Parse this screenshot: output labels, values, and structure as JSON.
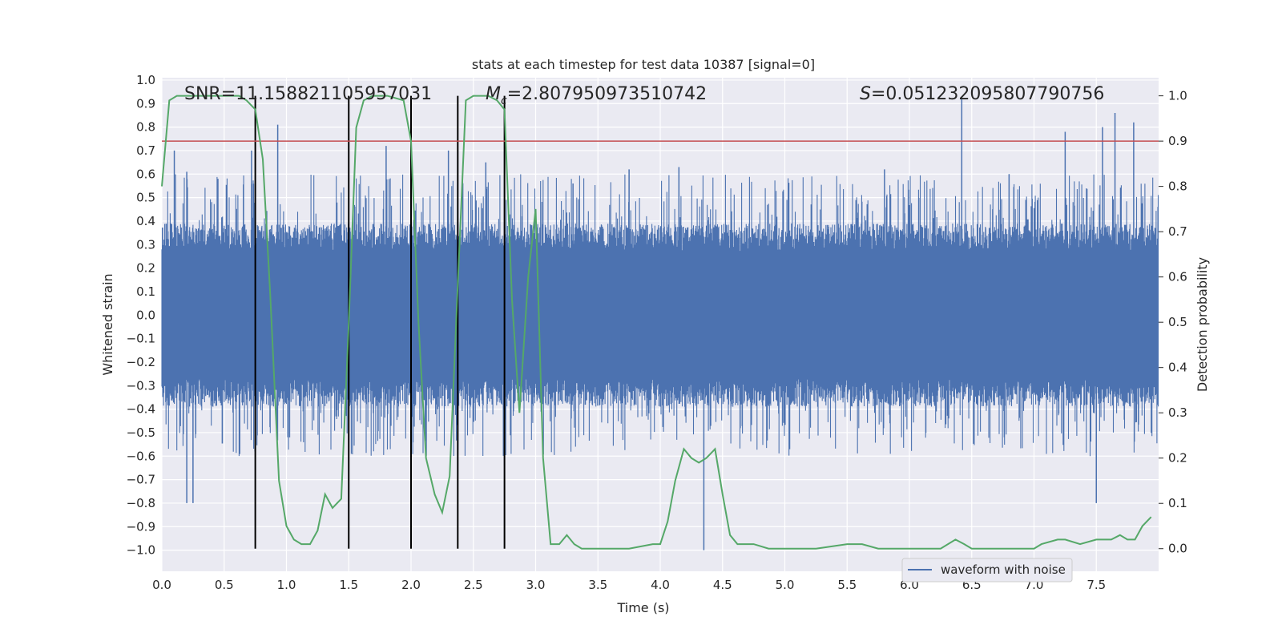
{
  "chart_data": {
    "type": "line",
    "title": "stats at each timestep for test data 10387 [signal=0]",
    "xlabel": "Time (s)",
    "ylabel_left": "Whitened strain",
    "ylabel_right": "Detection probability",
    "xlim": [
      0,
      8
    ],
    "ylim_left": [
      -1.09,
      1.01
    ],
    "ylim_right": [
      -0.05,
      1.04
    ],
    "xticks": [
      "0.0",
      "0.5",
      "1.0",
      "1.5",
      "2.0",
      "2.5",
      "3.0",
      "3.5",
      "4.0",
      "4.5",
      "5.0",
      "5.5",
      "6.0",
      "6.5",
      "7.0",
      "7.5"
    ],
    "yticks_left": [
      "1.0",
      "0.9",
      "0.8",
      "0.7",
      "0.6",
      "0.5",
      "0.4",
      "0.3",
      "0.2",
      "0.1",
      "0.0",
      "-0.1",
      "-0.2",
      "-0.3",
      "-0.4",
      "-0.5",
      "-0.6",
      "-0.7",
      "-0.8",
      "-0.9",
      "-1.0"
    ],
    "yticks_right": [
      "1.0",
      "0.9",
      "0.8",
      "0.7",
      "0.6",
      "0.5",
      "0.4",
      "0.3",
      "0.2",
      "0.1",
      "0.0"
    ],
    "annotations": {
      "snr": "SNR=11.158821105957031",
      "mc_symbol": "M",
      "mc_sub": "c",
      "mc_value": "=2.807950973510742",
      "s_symbol": "S",
      "s_value": "=0.051232095807790756"
    },
    "legend": {
      "label": "waveform with noise",
      "location": "lower right"
    },
    "threshold": 0.9,
    "vertical_lines": [
      0.75,
      1.5,
      2.0,
      2.375,
      2.75
    ],
    "series": [
      {
        "name": "waveform with noise",
        "axis": "left",
        "color": "#4c72b0",
        "spikes": [
          {
            "x": 0.1,
            "y": 0.7
          },
          {
            "x": 0.2,
            "y": -0.8
          },
          {
            "x": 0.25,
            "y": -0.8
          },
          {
            "x": 0.45,
            "y": 0.58
          },
          {
            "x": 0.72,
            "y": 0.7
          },
          {
            "x": 0.93,
            "y": 0.81
          },
          {
            "x": 1.8,
            "y": 0.72
          },
          {
            "x": 2.3,
            "y": 0.7
          },
          {
            "x": 2.75,
            "y": -0.64
          },
          {
            "x": 3.3,
            "y": 0.56
          },
          {
            "x": 3.75,
            "y": 0.62
          },
          {
            "x": 4.15,
            "y": 0.63
          },
          {
            "x": 4.35,
            "y": -1.0
          },
          {
            "x": 6.42,
            "y": 0.92
          },
          {
            "x": 6.8,
            "y": 0.6
          },
          {
            "x": 7.25,
            "y": 0.78
          },
          {
            "x": 7.55,
            "y": 0.8
          },
          {
            "x": 7.65,
            "y": 0.86
          },
          {
            "x": 7.8,
            "y": 0.82
          },
          {
            "x": 7.5,
            "y": -0.8
          },
          {
            "x": 0.2,
            "y": 0.61
          },
          {
            "x": 2.6,
            "y": 0.65
          },
          {
            "x": 5.8,
            "y": 0.62
          }
        ]
      },
      {
        "name": "detection probability",
        "axis": "right",
        "color": "#55a868",
        "points": [
          [
            0.0,
            0.8
          ],
          [
            0.06,
            0.99
          ],
          [
            0.12,
            1.0
          ],
          [
            0.25,
            1.0
          ],
          [
            0.38,
            1.0
          ],
          [
            0.5,
            1.0
          ],
          [
            0.62,
            1.0
          ],
          [
            0.68,
            0.99
          ],
          [
            0.75,
            0.97
          ],
          [
            0.81,
            0.86
          ],
          [
            0.87,
            0.56
          ],
          [
            0.94,
            0.15
          ],
          [
            1.0,
            0.05
          ],
          [
            1.06,
            0.02
          ],
          [
            1.12,
            0.01
          ],
          [
            1.19,
            0.01
          ],
          [
            1.25,
            0.04
          ],
          [
            1.31,
            0.12
          ],
          [
            1.37,
            0.09
          ],
          [
            1.44,
            0.11
          ],
          [
            1.5,
            0.5
          ],
          [
            1.56,
            0.93
          ],
          [
            1.62,
            0.99
          ],
          [
            1.69,
            1.0
          ],
          [
            1.81,
            1.0
          ],
          [
            1.94,
            0.99
          ],
          [
            2.0,
            0.9
          ],
          [
            2.06,
            0.5
          ],
          [
            2.12,
            0.2
          ],
          [
            2.19,
            0.12
          ],
          [
            2.25,
            0.08
          ],
          [
            2.31,
            0.16
          ],
          [
            2.37,
            0.55
          ],
          [
            2.44,
            0.99
          ],
          [
            2.5,
            1.0
          ],
          [
            2.62,
            1.0
          ],
          [
            2.69,
            0.99
          ],
          [
            2.75,
            0.97
          ],
          [
            2.81,
            0.55
          ],
          [
            2.87,
            0.3
          ],
          [
            2.94,
            0.6
          ],
          [
            3.0,
            0.75
          ],
          [
            3.06,
            0.2
          ],
          [
            3.12,
            0.01
          ],
          [
            3.19,
            0.01
          ],
          [
            3.25,
            0.03
          ],
          [
            3.31,
            0.01
          ],
          [
            3.37,
            0.0
          ],
          [
            3.5,
            0.0
          ],
          [
            3.75,
            0.0
          ],
          [
            3.94,
            0.01
          ],
          [
            4.0,
            0.01
          ],
          [
            4.06,
            0.06
          ],
          [
            4.12,
            0.15
          ],
          [
            4.19,
            0.22
          ],
          [
            4.25,
            0.2
          ],
          [
            4.31,
            0.19
          ],
          [
            4.37,
            0.2
          ],
          [
            4.44,
            0.22
          ],
          [
            4.5,
            0.12
          ],
          [
            4.56,
            0.03
          ],
          [
            4.62,
            0.01
          ],
          [
            4.69,
            0.01
          ],
          [
            4.75,
            0.01
          ],
          [
            4.87,
            0.0
          ],
          [
            5.0,
            0.0
          ],
          [
            5.25,
            0.0
          ],
          [
            5.5,
            0.01
          ],
          [
            5.62,
            0.01
          ],
          [
            5.75,
            0.0
          ],
          [
            6.0,
            0.0
          ],
          [
            6.25,
            0.0
          ],
          [
            6.37,
            0.02
          ],
          [
            6.44,
            0.01
          ],
          [
            6.5,
            0.0
          ],
          [
            6.75,
            0.0
          ],
          [
            7.0,
            0.0
          ],
          [
            7.06,
            0.01
          ],
          [
            7.19,
            0.02
          ],
          [
            7.25,
            0.02
          ],
          [
            7.37,
            0.01
          ],
          [
            7.5,
            0.02
          ],
          [
            7.56,
            0.02
          ],
          [
            7.62,
            0.02
          ],
          [
            7.69,
            0.03
          ],
          [
            7.75,
            0.02
          ],
          [
            7.81,
            0.02
          ],
          [
            7.87,
            0.05
          ],
          [
            7.94,
            0.07
          ]
        ]
      }
    ]
  }
}
